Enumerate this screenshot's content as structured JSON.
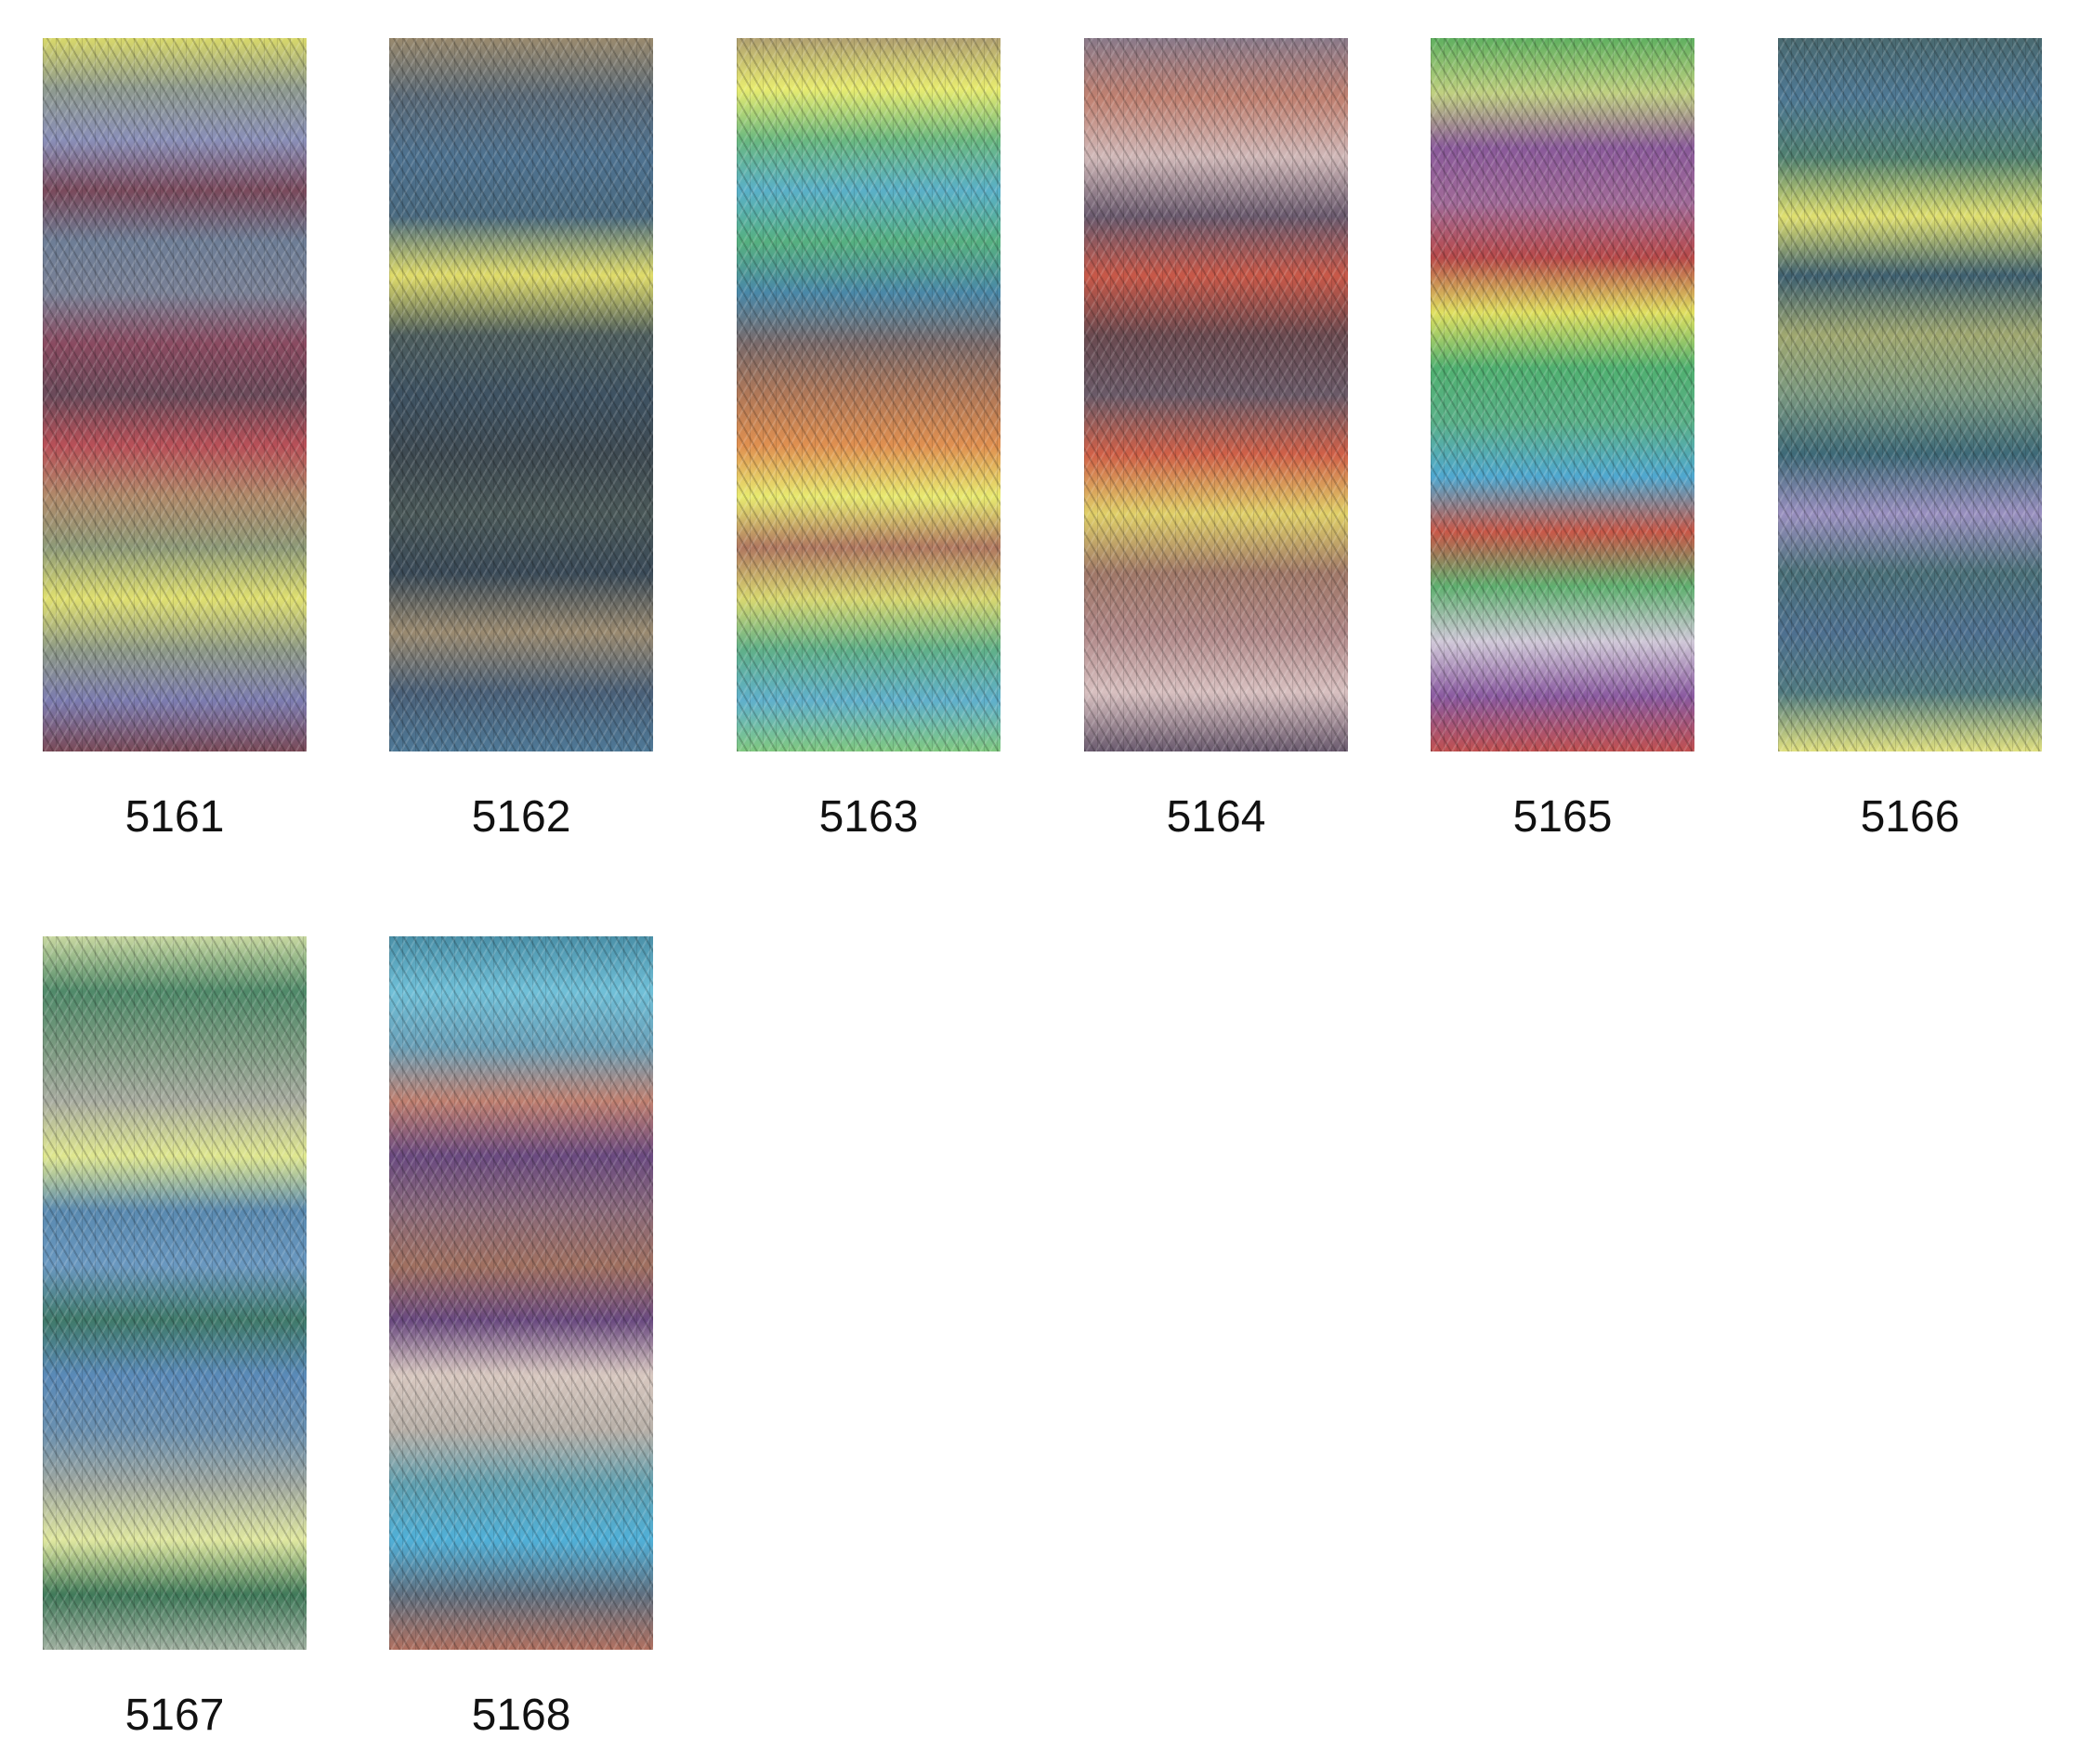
{
  "swatches": [
    {
      "code": "5161",
      "stripes": [
        "#d8d86a",
        "#8e9a8e",
        "#8a8fb8",
        "#7a4a5c",
        "#6e7e96",
        "#7a8196",
        "#8a4a60",
        "#6a4a5a",
        "#b85058",
        "#b08a6a",
        "#8e9a78",
        "#e0e070",
        "#8e9a86",
        "#7c7cb0",
        "#7a4a58"
      ]
    },
    {
      "code": "5162",
      "stripes": [
        "#9a8a6e",
        "#5a6a78",
        "#4e7290",
        "#4a6a80",
        "#e0dc6a",
        "#4e5e5e",
        "#3e5262",
        "#3e4a52",
        "#4a5858",
        "#3a4a58",
        "#9a8a70",
        "#4a6078",
        "#4e7896"
      ]
    },
    {
      "code": "5163",
      "stripes": [
        "#b0a070",
        "#e8ec70",
        "#6ab880",
        "#5ab0c8",
        "#56b080",
        "#4a88a8",
        "#7a6a6a",
        "#b07858",
        "#e09050",
        "#e8ea70",
        "#b07860",
        "#d8d870",
        "#60b088",
        "#60b0cc",
        "#80c880"
      ]
    },
    {
      "code": "5164",
      "stripes": [
        "#8a7a8a",
        "#c08070",
        "#d0b8b8",
        "#6a5a6e",
        "#c85848",
        "#6a4a50",
        "#6a5a68",
        "#d06048",
        "#e0d068",
        "#a07868",
        "#b08888",
        "#d8c0c0",
        "#6a5a6e"
      ]
    },
    {
      "code": "5165",
      "stripes": [
        "#60b060",
        "#c0d080",
        "#8a5a9a",
        "#a06a98",
        "#b84a4a",
        "#e0e060",
        "#50b070",
        "#5ab088",
        "#50a8d0",
        "#c85848",
        "#60b070",
        "#d0c8d8",
        "#8a5aa0",
        "#c05050"
      ]
    },
    {
      "code": "5166",
      "stripes": [
        "#4a6a70",
        "#4e7894",
        "#508070",
        "#e0e070",
        "#3e6070",
        "#a0a870",
        "#7a9880",
        "#3e6a78",
        "#9a90c0",
        "#4a7078",
        "#4e7090",
        "#507a80",
        "#e0e080"
      ]
    },
    {
      "code": "5167",
      "stripes": [
        "#c8d8a0",
        "#508a6a",
        "#7a9a80",
        "#a8aca0",
        "#e0e890",
        "#5a8ab0",
        "#6a98c0",
        "#407a6a",
        "#5a8ab8",
        "#6a90b0",
        "#a0a8a0",
        "#e0e8a0",
        "#407a5a",
        "#a0b0a0"
      ]
    },
    {
      "code": "5168",
      "stripes": [
        "#4a90a8",
        "#70c0d8",
        "#6aa0b8",
        "#c08070",
        "#6a4a80",
        "#8a6a7a",
        "#a07060",
        "#6a4a80",
        "#d8c8c0",
        "#b8b0a8",
        "#60a0b0",
        "#50b0d8",
        "#607080",
        "#b07060"
      ]
    }
  ]
}
